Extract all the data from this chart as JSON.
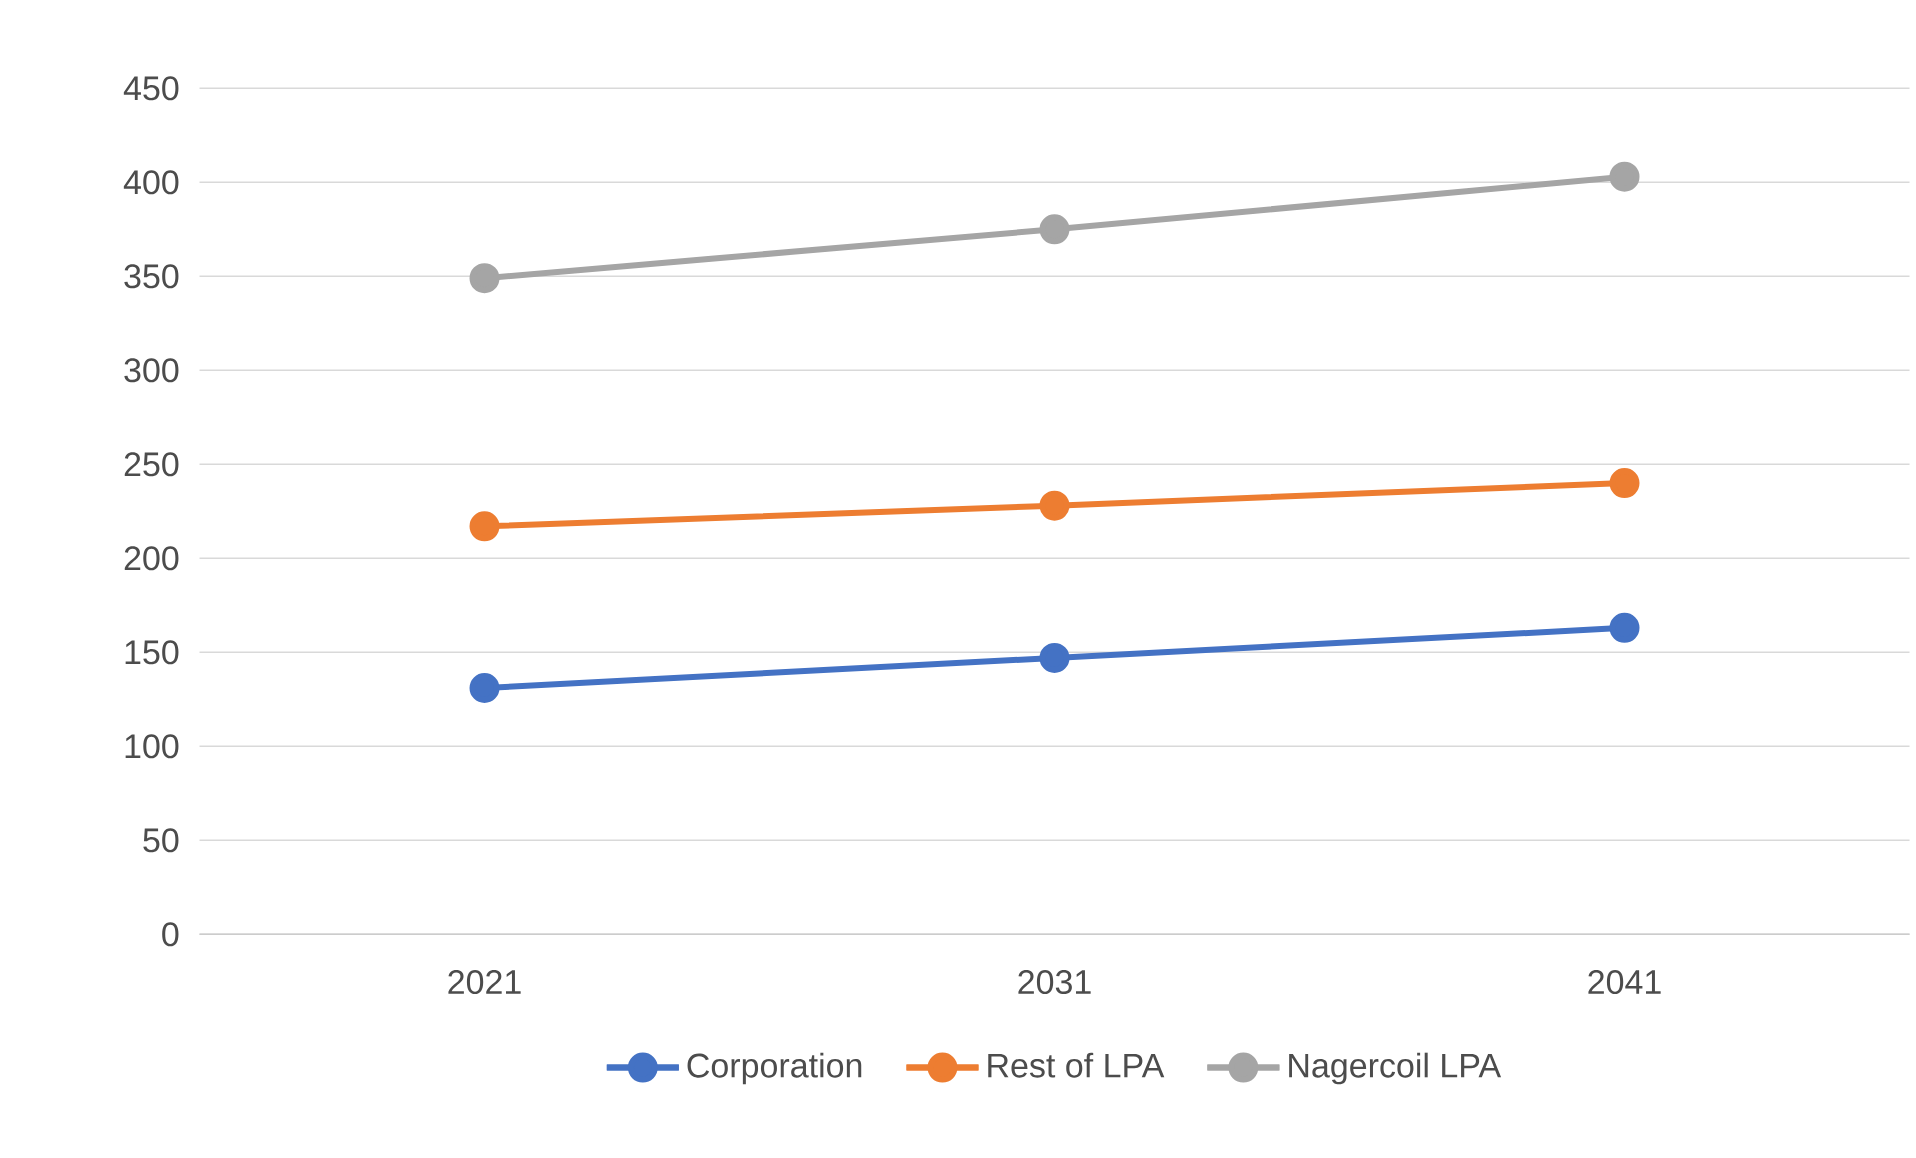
{
  "chart_data": {
    "type": "line",
    "categories": [
      "2021",
      "2031",
      "2041"
    ],
    "series": [
      {
        "name": "Corporation",
        "color": "#4472c4",
        "values": [
          131,
          147,
          163
        ]
      },
      {
        "name": "Rest of LPA",
        "color": "#ed7d31",
        "values": [
          217,
          228,
          240
        ]
      },
      {
        "name": "Nagercoil LPA",
        "color": "#a5a5a5",
        "values": [
          349,
          375,
          403
        ]
      }
    ],
    "ylim": [
      0,
      450
    ],
    "yticks": [
      0,
      50,
      100,
      150,
      200,
      250,
      300,
      350,
      400,
      450
    ],
    "grid": "y",
    "legend": "bottom",
    "marker": "circle",
    "line_style": "solid"
  }
}
